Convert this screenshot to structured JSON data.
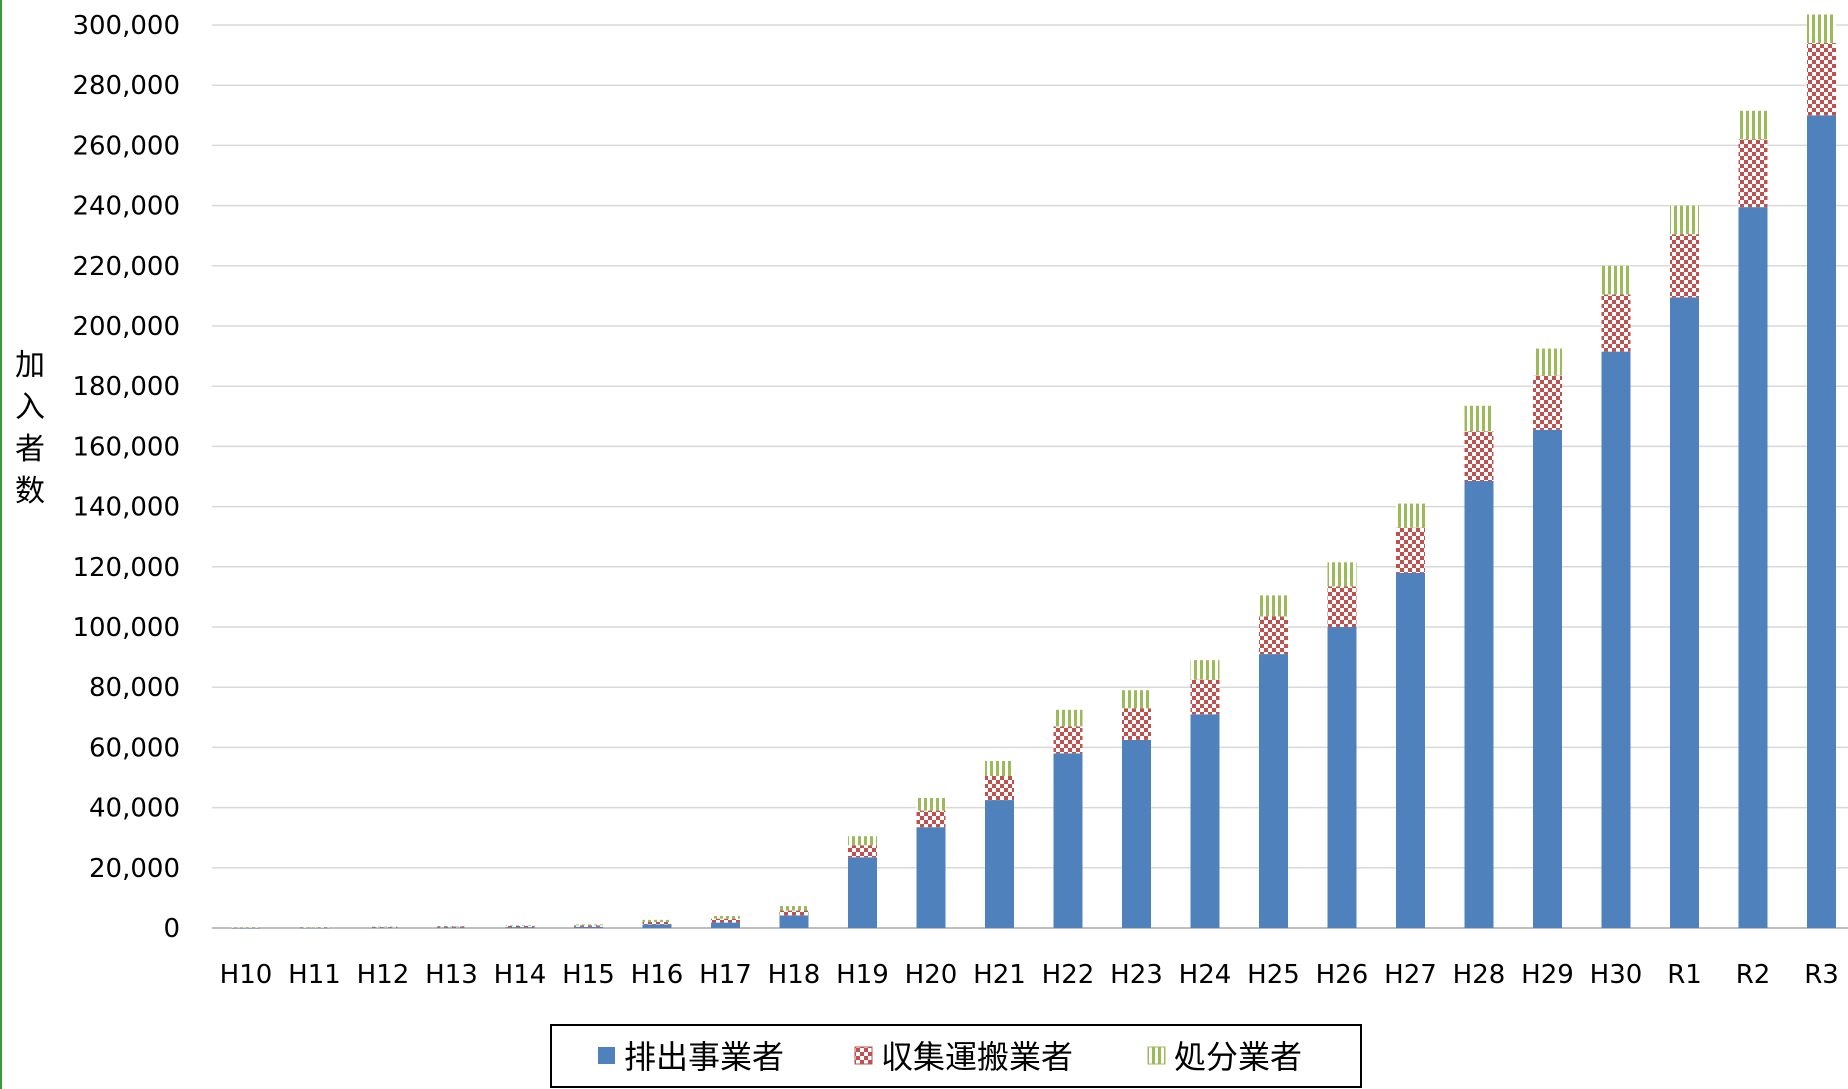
{
  "chart_data": {
    "type": "bar",
    "stacked": true,
    "title": "",
    "xlabel": "",
    "ylabel": "加入者数",
    "ylim": [
      0,
      300000
    ],
    "yticks": [
      "0",
      "20,000",
      "40,000",
      "60,000",
      "80,000",
      "100,000",
      "120,000",
      "140,000",
      "160,000",
      "180,000",
      "200,000",
      "220,000",
      "240,000",
      "260,000",
      "280,000",
      "300,000"
    ],
    "grid": true,
    "legend_position": "bottom",
    "categories": [
      "H10",
      "H11",
      "H12",
      "H13",
      "H14",
      "H15",
      "H16",
      "H17",
      "H18",
      "H19",
      "H20",
      "H21",
      "H22",
      "H23",
      "H24",
      "H25",
      "H26",
      "H27",
      "H28",
      "H29",
      "H30",
      "R1",
      "R2",
      "R3"
    ],
    "series": [
      {
        "name": "排出事業者",
        "color": "#4f81bd",
        "pattern": "solid",
        "values": [
          50,
          100,
          150,
          200,
          300,
          400,
          1200,
          1800,
          4200,
          23500,
          33500,
          42500,
          58000,
          62500,
          71000,
          91000,
          100000,
          118000,
          148500,
          165500,
          191500,
          209500,
          239500,
          270000
        ]
      },
      {
        "name": "収集運搬業者",
        "color": "#c0504d",
        "pattern": "checker",
        "values": [
          100,
          150,
          200,
          300,
          400,
          500,
          800,
          1300,
          1600,
          4000,
          5500,
          8000,
          9000,
          10500,
          11500,
          12500,
          13500,
          15000,
          16500,
          18000,
          19000,
          21000,
          22500,
          24000
        ]
      },
      {
        "name": "処分業者",
        "color": "#9bbb59",
        "pattern": "vertical",
        "values": [
          50,
          50,
          100,
          150,
          200,
          300,
          700,
          900,
          1500,
          3000,
          4200,
          5000,
          5500,
          6000,
          6500,
          7000,
          8000,
          8000,
          8500,
          9000,
          9500,
          9500,
          9500,
          9500
        ]
      }
    ]
  }
}
